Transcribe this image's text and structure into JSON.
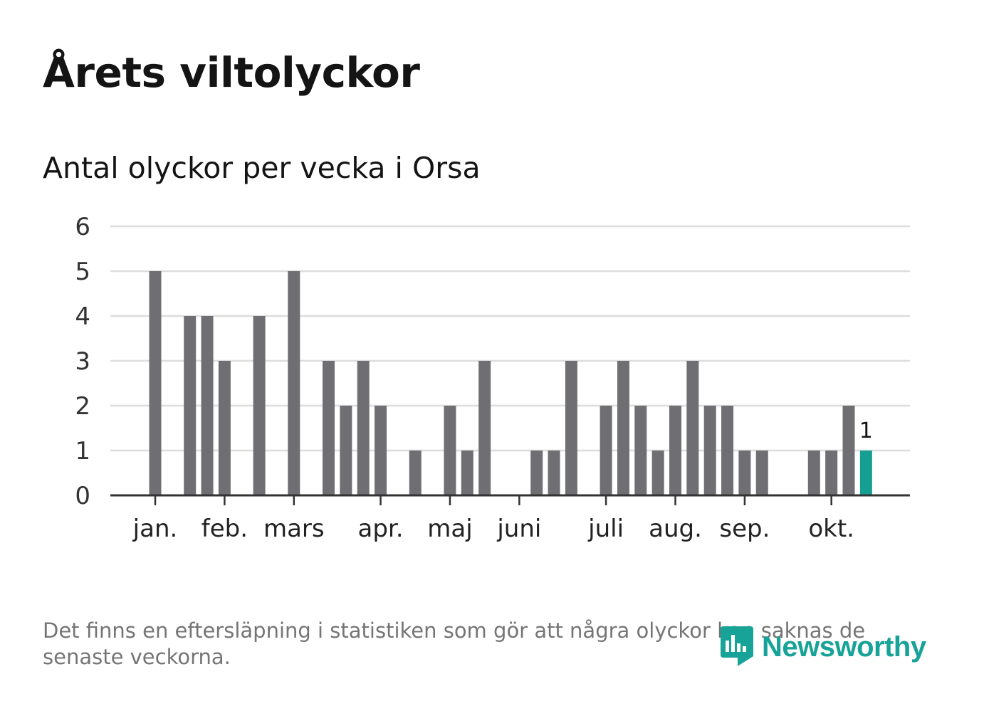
{
  "header": {
    "title": "Årets viltolyckor",
    "subtitle": "Antal olyckor per vecka i Orsa"
  },
  "footer": {
    "note": "Det finns en eftersläpning i statistiken som gör att några olyckor kan saknas de senaste veckorna.",
    "brand": "Newsworthy"
  },
  "colors": {
    "bar": "#6f6e73",
    "highlight": "#159e92",
    "grid": "#dddddd",
    "axis": "#333333",
    "text": "#333333"
  },
  "chart_data": {
    "type": "bar",
    "title": "Antal olyckor per vecka i Orsa",
    "xlabel": "",
    "ylabel": "",
    "ylim": [
      0,
      6
    ],
    "yticks": [
      "0",
      "1",
      "2",
      "3",
      "4",
      "5",
      "6"
    ],
    "grid": true,
    "weeks": [
      1,
      2,
      3,
      4,
      5,
      6,
      7,
      8,
      9,
      10,
      11,
      12,
      13,
      14,
      15,
      16,
      17,
      18,
      19,
      20,
      21,
      22,
      23,
      24,
      25,
      26,
      27,
      28,
      29,
      30,
      31,
      32,
      33,
      34,
      35,
      36,
      37,
      38,
      39,
      40,
      41,
      42,
      43,
      44
    ],
    "values": [
      5,
      0,
      4,
      4,
      3,
      0,
      4,
      0,
      5,
      0,
      3,
      2,
      3,
      2,
      0,
      1,
      0,
      2,
      1,
      3,
      0,
      0,
      1,
      1,
      3,
      0,
      2,
      3,
      2,
      1,
      2,
      3,
      2,
      2,
      1,
      1,
      0,
      0,
      1,
      1,
      2,
      1,
      0,
      0
    ],
    "highlight_week": 42,
    "highlight_label": "1",
    "month_ticks": [
      {
        "label": "jan.",
        "week": 1
      },
      {
        "label": "feb.",
        "week": 5
      },
      {
        "label": "mars",
        "week": 9
      },
      {
        "label": "apr.",
        "week": 14
      },
      {
        "label": "maj",
        "week": 18
      },
      {
        "label": "juni",
        "week": 22
      },
      {
        "label": "juli",
        "week": 27
      },
      {
        "label": "aug.",
        "week": 31
      },
      {
        "label": "sep.",
        "week": 35
      },
      {
        "label": "okt.",
        "week": 40
      }
    ]
  }
}
